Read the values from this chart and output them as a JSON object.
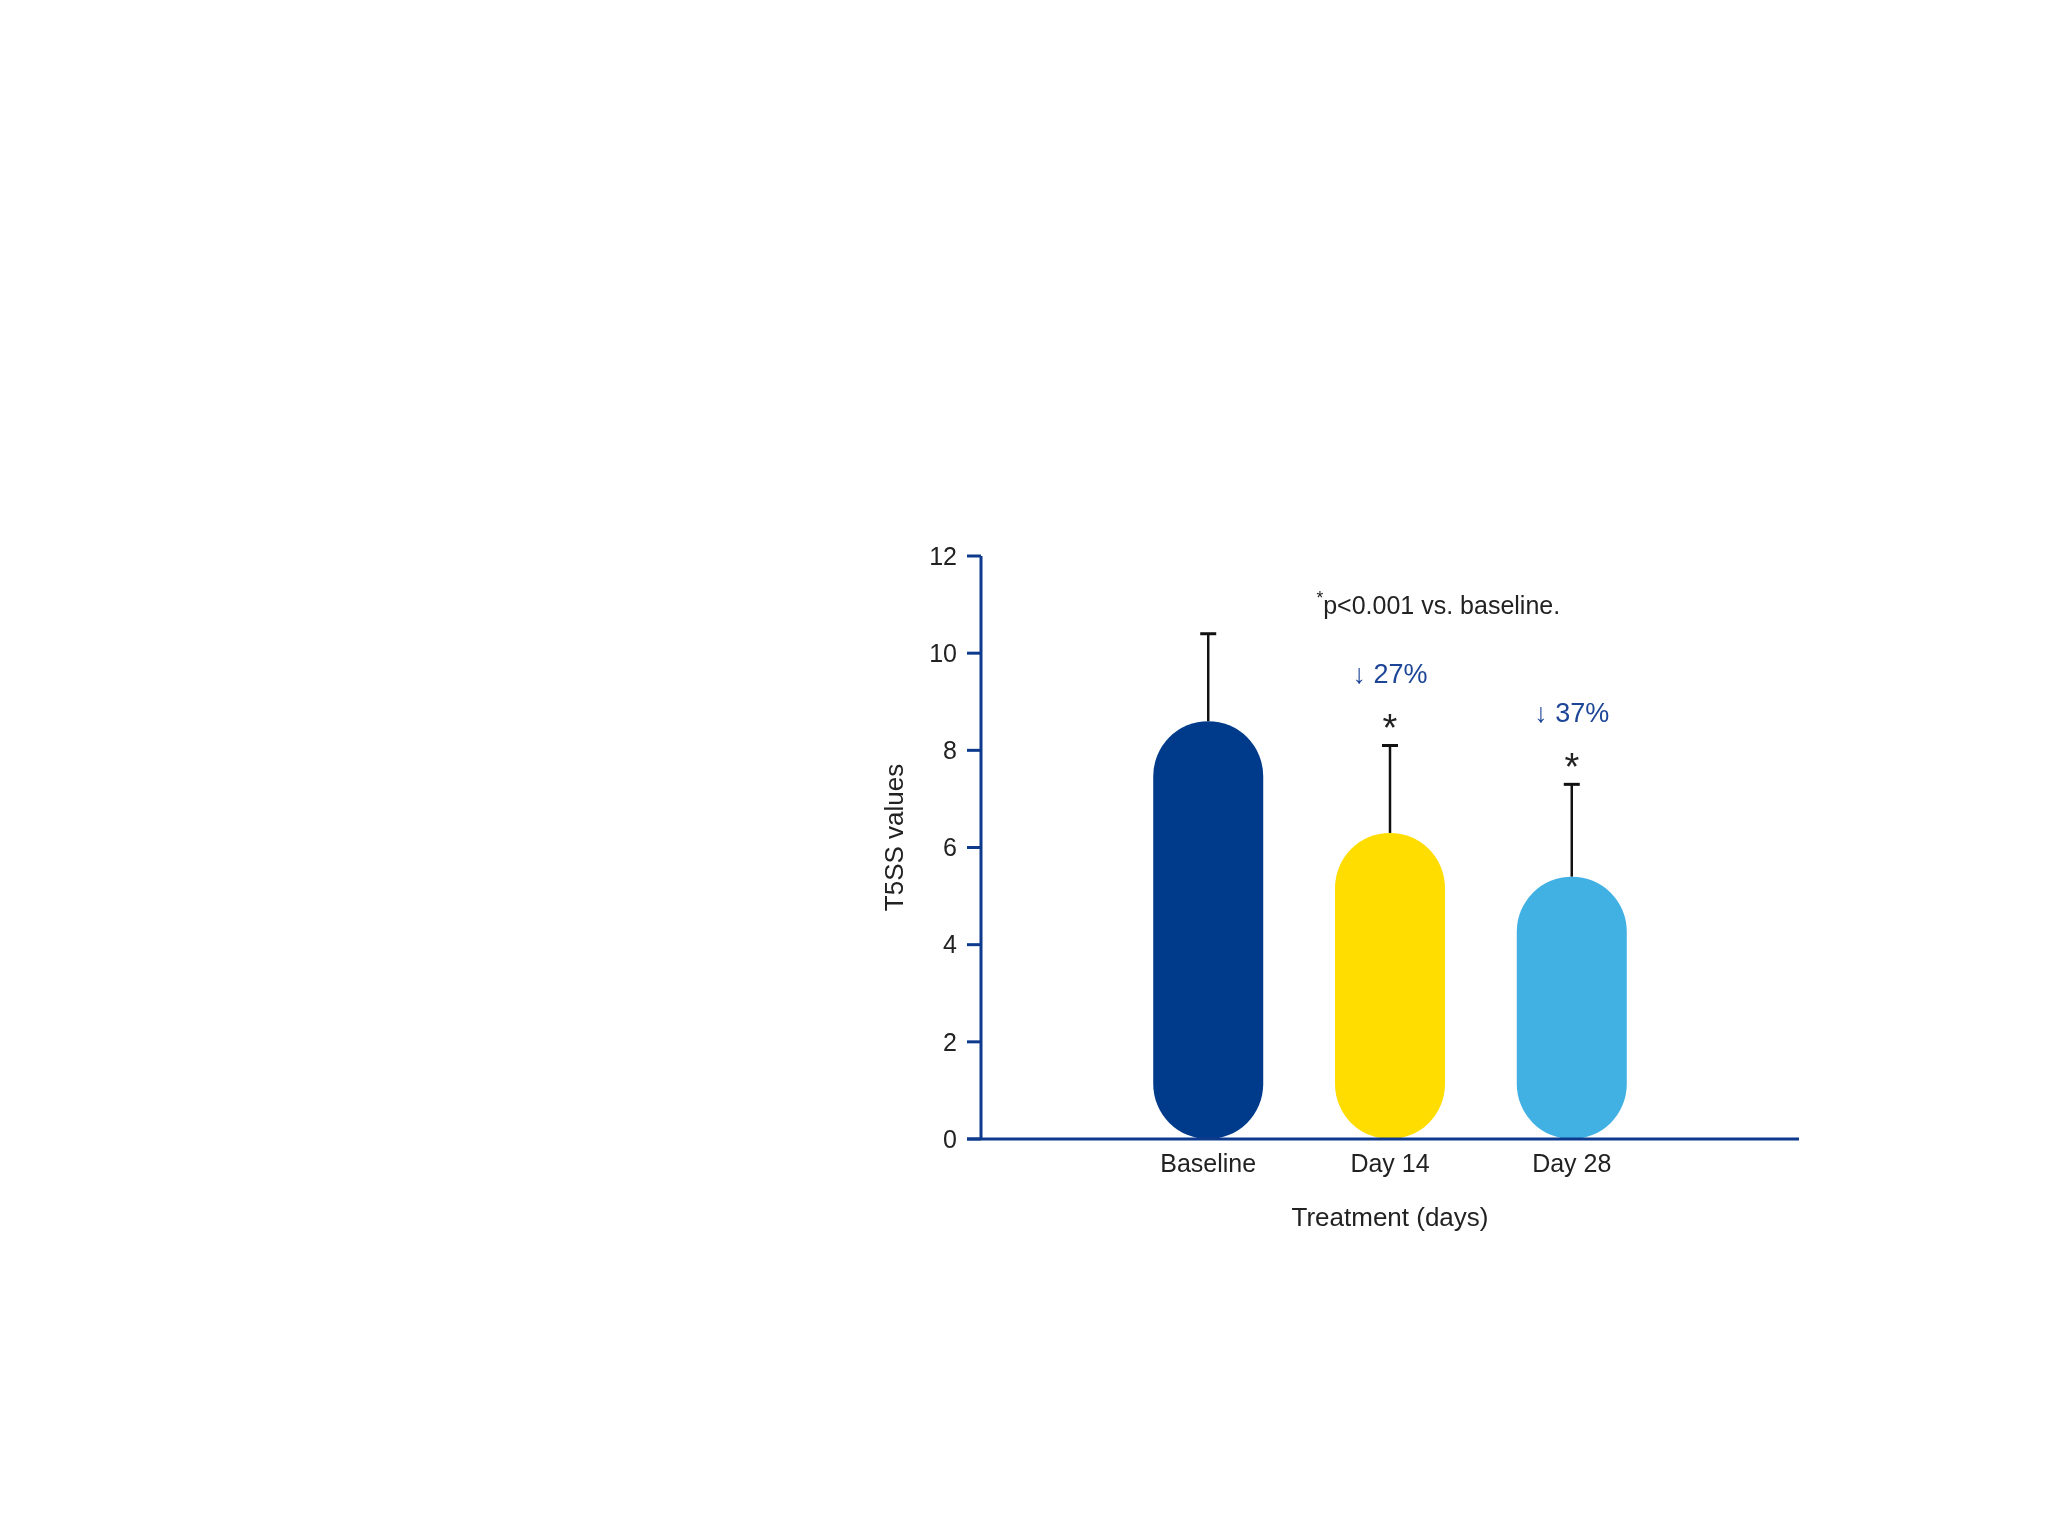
{
  "chart_data": {
    "type": "bar",
    "categories": [
      "Baseline",
      "Day 14",
      "Day 28"
    ],
    "values": [
      8.6,
      6.3,
      5.4
    ],
    "colors": [
      "#003a8a",
      "#ffdd00",
      "#41b0e3"
    ],
    "errors": [
      [
        8.6,
        10.4
      ],
      [
        6.3,
        8.1
      ],
      [
        5.4,
        7.3
      ]
    ],
    "xlabel": "Treatment (days)",
    "ylabel": "T5SS values",
    "ylim": [
      0,
      12
    ],
    "yticks": [
      0,
      2,
      4,
      6,
      8,
      10,
      12
    ],
    "annotations": [
      "$^{*}$p<0.001 vs. baseline.",
      {
        "text": "*",
        "x": "Day 14",
        "y": 8.1
      },
      {
        "text": "↓ 27%",
        "x": "Day 14",
        "y": 8.1
      },
      {
        "text": "*",
        "x": "Day 28",
        "y": 7.3
      },
      {
        "text": "↓ 37%",
        "x": "Day 28",
        "y": 7.3
      }
    ]
  }
}
